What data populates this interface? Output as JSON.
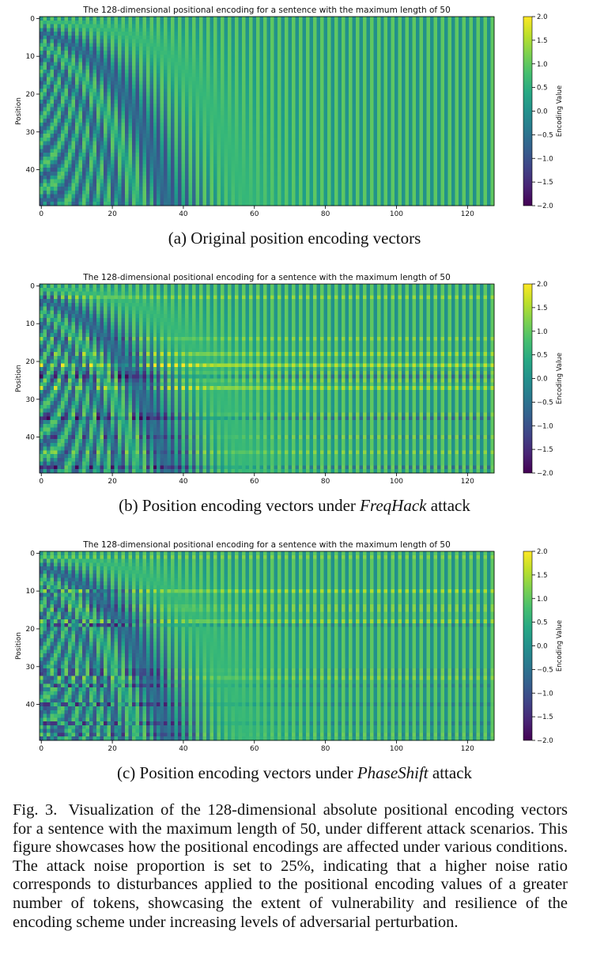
{
  "colors": {
    "colormap": "viridis",
    "background": "#ffffff",
    "text": "#111111"
  },
  "chart_data": [
    {
      "type": "heatmap",
      "title": "The 128-dimensional positional encoding for a sentence with the maximum length of 50",
      "xlabel": "",
      "ylabel": "Position",
      "colorbar_label": "Encoding Value",
      "x_range": [
        0,
        127
      ],
      "y_range": [
        0,
        49
      ],
      "x_ticks": [
        0,
        20,
        40,
        60,
        80,
        100,
        120
      ],
      "y_ticks": [
        0,
        10,
        20,
        30,
        40
      ],
      "clim": [
        -2.0,
        2.0
      ],
      "colorbar_ticks": [
        "2.0",
        "1.5",
        "1.0",
        "0.5",
        "0.0",
        "−0.5",
        "−1.0",
        "−1.5",
        "−2.0"
      ],
      "variant": "original",
      "encoding": "sinusoidal",
      "d_model": 128,
      "max_len": 50
    },
    {
      "type": "heatmap",
      "title": "The 128-dimensional positional encoding for a sentence with the maximum length of 50",
      "xlabel": "",
      "ylabel": "Position",
      "colorbar_label": "Encoding Value",
      "x_range": [
        0,
        127
      ],
      "y_range": [
        0,
        49
      ],
      "x_ticks": [
        0,
        20,
        40,
        60,
        80,
        100,
        120
      ],
      "y_ticks": [
        0,
        10,
        20,
        30,
        40
      ],
      "clim": [
        -2.0,
        2.0
      ],
      "colorbar_ticks": [
        "2.0",
        "1.5",
        "1.0",
        "0.5",
        "0.0",
        "−0.5",
        "−1.0",
        "−1.5",
        "−2.0"
      ],
      "variant": "FreqHack",
      "encoding": "sinusoidal",
      "d_model": 128,
      "max_len": 50,
      "noise_proportion": 0.25
    },
    {
      "type": "heatmap",
      "title": "The 128-dimensional positional encoding for a sentence with the maximum length of 50",
      "xlabel": "",
      "ylabel": "Position",
      "colorbar_label": "Encoding Value",
      "x_range": [
        0,
        127
      ],
      "y_range": [
        0,
        49
      ],
      "x_ticks": [
        0,
        20,
        40,
        60,
        80,
        100,
        120
      ],
      "y_ticks": [
        0,
        10,
        20,
        30,
        40
      ],
      "clim": [
        -2.0,
        2.0
      ],
      "colorbar_ticks": [
        "2.0",
        "1.5",
        "1.0",
        "0.5",
        "0.0",
        "−0.5",
        "−1.0",
        "−1.5",
        "−2.0"
      ],
      "variant": "PhaseShift",
      "encoding": "sinusoidal",
      "d_model": 128,
      "max_len": 50,
      "noise_proportion": 0.25
    }
  ],
  "captions": {
    "a": {
      "prefix": "(a) Original position encoding vectors",
      "emph": "",
      "suffix": ""
    },
    "b": {
      "prefix": "(b) Position encoding vectors under ",
      "emph": "FreqHack",
      "suffix": " attack"
    },
    "c": {
      "prefix": "(c) Position encoding vectors under ",
      "emph": "PhaseShift",
      "suffix": " attack"
    }
  },
  "figure_caption": {
    "label": "Fig. 3.",
    "text": "Visualization of the 128-dimensional absolute positional encoding vectors for a sentence with the maximum length of 50, under different attack scenarios. This figure showcases how the positional encodings are affected under various conditions. The attack noise proportion is set to 25%, indicating that a higher noise ratio corresponds to disturbances applied to the positional encoding values of a greater number of tokens, showcasing the extent of vulnerability and resilience of the encoding scheme under increasing levels of adversarial perturbation."
  }
}
